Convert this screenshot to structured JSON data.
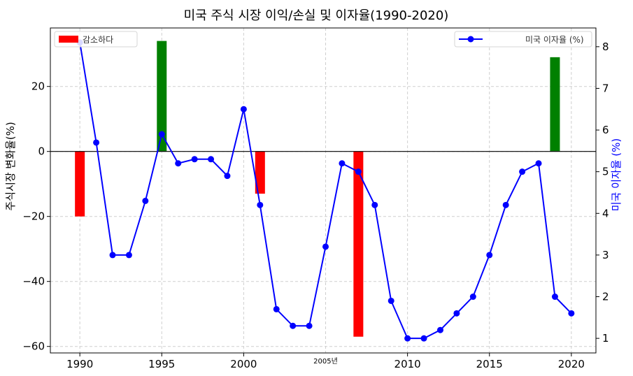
{
  "chart_data": {
    "type": "bar+line",
    "title": "미국 주식 시장 이익/손실 및 이자율(1990-2020)",
    "xlabel": "",
    "ylabel_left": "주식시장 변화율(%)",
    "ylabel_right": "미국 이자율 (%)",
    "xlim": [
      1988.2,
      2021.5
    ],
    "ylim_left": [
      -62,
      38
    ],
    "ylim_right": [
      0.65,
      8.45
    ],
    "x_ticks": [
      1990,
      1995,
      2000,
      2010,
      2015,
      2020
    ],
    "x_tick_labels": [
      "1990",
      "1995",
      "2000",
      "2010",
      "2015",
      "2020"
    ],
    "x_extra_tick": {
      "x": 2005,
      "label": "2005년"
    },
    "y_left_ticks": [
      20,
      0,
      -20,
      -40,
      -60
    ],
    "y_left_tick_labels": [
      "20",
      "0",
      "−20",
      "−40",
      "−60"
    ],
    "y_right_ticks": [
      1,
      2,
      3,
      4,
      5,
      6,
      7,
      8
    ],
    "y_right_tick_labels": [
      "1",
      "2",
      "3",
      "4",
      "5",
      "6",
      "7",
      "8"
    ],
    "grid": true,
    "bar_series": {
      "name": "감소하다",
      "legend_color": "#ff0000",
      "positive_color": "#008000",
      "negative_color": "#ff0000",
      "points": [
        {
          "x": 1990,
          "value": -20
        },
        {
          "x": 1995,
          "value": 34
        },
        {
          "x": 2001,
          "value": -13
        },
        {
          "x": 2007,
          "value": -57
        },
        {
          "x": 2019,
          "value": 29
        }
      ]
    },
    "line_series": {
      "name": "미국 이자율 (%)",
      "color": "#0000ff",
      "x": [
        1990,
        1991,
        1992,
        1993,
        1994,
        1995,
        1996,
        1997,
        1998,
        1999,
        2000,
        2001,
        2002,
        2003,
        2004,
        2005,
        2006,
        2007,
        2008,
        2009,
        2010,
        2011,
        2012,
        2013,
        2014,
        2015,
        2016,
        2017,
        2018,
        2019,
        2020
      ],
      "values": [
        8.1,
        5.7,
        3.0,
        3.0,
        4.3,
        5.9,
        5.2,
        5.3,
        5.3,
        4.9,
        6.5,
        4.2,
        1.7,
        1.3,
        1.3,
        3.2,
        5.2,
        5.0,
        4.2,
        1.9,
        1.0,
        1.0,
        1.2,
        1.6,
        2.0,
        3.0,
        4.2,
        5.0,
        5.2,
        2.0,
        1.6
      ]
    },
    "legend_bar_position": "top-left",
    "legend_line_position": "top-right"
  }
}
